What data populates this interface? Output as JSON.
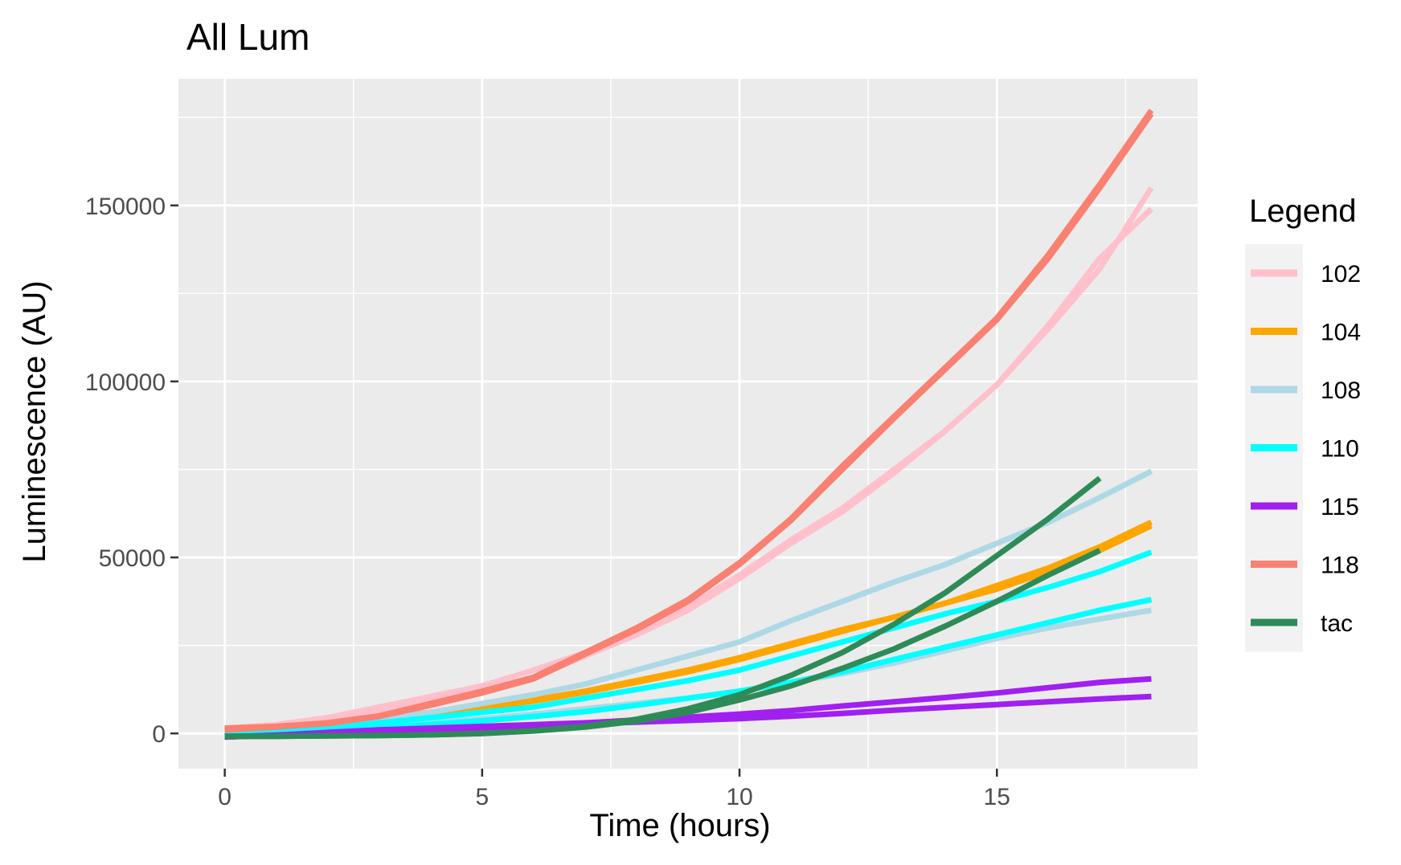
{
  "chart_data": {
    "type": "line",
    "title": "All Lum",
    "xlabel": "Time (hours)",
    "ylabel": "Luminescence (AU)",
    "xlim": [
      -0.9,
      18.9
    ],
    "ylim": [
      -10000,
      186000
    ],
    "x_ticks": [
      0,
      5,
      10,
      15
    ],
    "y_ticks": [
      0,
      50000,
      100000,
      150000
    ],
    "x_tick_labels": [
      "0",
      "5",
      "10",
      "15"
    ],
    "y_tick_labels": [
      "0",
      "50000",
      "100000",
      "150000"
    ],
    "grid": true,
    "legend_title": "Legend",
    "legend_position": "right",
    "legend": [
      {
        "name": "102",
        "color": "#FFC0CB"
      },
      {
        "name": "104",
        "color": "#FFA500"
      },
      {
        "name": "108",
        "color": "#ADD8E6"
      },
      {
        "name": "110",
        "color": "#00FFFF"
      },
      {
        "name": "115",
        "color": "#A020F0"
      },
      {
        "name": "118",
        "color": "#FA8072"
      },
      {
        "name": "tac",
        "color": "#2E8B57"
      }
    ],
    "series": [
      {
        "name": "102",
        "color": "#FFC0CB",
        "x": [
          0,
          1,
          2,
          3,
          4,
          5,
          6,
          7,
          8,
          9,
          10,
          11,
          12,
          13,
          14,
          15,
          16,
          17,
          18
        ],
        "y": [
          1500,
          2500,
          4500,
          7500,
          10500,
          13500,
          18000,
          23000,
          29000,
          36000,
          45000,
          55000,
          64000,
          75000,
          86000,
          99000,
          115000,
          132000,
          155000
        ]
      },
      {
        "name": "102",
        "color": "#FFC0CB",
        "x": [
          0,
          1,
          2,
          3,
          4,
          5,
          6,
          7,
          8,
          9,
          10,
          11,
          12,
          13,
          14,
          15,
          16,
          17,
          18
        ],
        "y": [
          1000,
          2000,
          3500,
          6000,
          9000,
          12000,
          16000,
          22000,
          28000,
          35000,
          44000,
          54000,
          63000,
          74000,
          86000,
          99000,
          116000,
          135000,
          149000
        ]
      },
      {
        "name": "104",
        "color": "#FFA500",
        "x": [
          0,
          1,
          2,
          3,
          4,
          5,
          6,
          7,
          8,
          9,
          10,
          11,
          12,
          13,
          14,
          15,
          16,
          17,
          18
        ],
        "y": [
          1000,
          1800,
          3000,
          4500,
          6000,
          7500,
          9500,
          12000,
          15000,
          18000,
          21500,
          25500,
          29500,
          33000,
          37000,
          41000,
          46000,
          52000,
          59000
        ]
      },
      {
        "name": "104",
        "color": "#FFA500",
        "x": [
          0,
          1,
          2,
          3,
          4,
          5,
          6,
          7,
          8,
          9,
          10,
          11,
          12,
          13,
          14,
          15,
          16,
          17,
          18
        ],
        "y": [
          800,
          1500,
          2700,
          4200,
          5700,
          7200,
          9200,
          11700,
          14500,
          17500,
          21000,
          25000,
          29000,
          33000,
          37000,
          42000,
          47000,
          53000,
          60000
        ]
      },
      {
        "name": "108",
        "color": "#ADD8E6",
        "x": [
          0,
          1,
          2,
          3,
          4,
          5,
          6,
          7,
          8,
          9,
          10,
          11,
          12,
          13,
          14,
          15,
          16,
          17,
          18
        ],
        "y": [
          -500,
          500,
          2000,
          4000,
          6000,
          8500,
          11000,
          14000,
          18000,
          22000,
          26000,
          32000,
          37500,
          43000,
          48000,
          54000,
          60000,
          67000,
          74500
        ]
      },
      {
        "name": "108",
        "color": "#ADD8E6",
        "x": [
          0,
          1,
          2,
          3,
          4,
          5,
          6,
          7,
          8,
          9,
          10,
          11,
          12,
          13,
          14,
          15,
          16,
          17,
          18
        ],
        "y": [
          -800,
          0,
          800,
          1800,
          3000,
          4200,
          5500,
          7000,
          8500,
          10000,
          12000,
          14500,
          17000,
          20000,
          23500,
          27000,
          30000,
          32500,
          35000
        ]
      },
      {
        "name": "110",
        "color": "#00FFFF",
        "x": [
          0,
          1,
          2,
          3,
          4,
          5,
          6,
          7,
          8,
          9,
          10,
          11,
          12,
          13,
          14,
          15,
          16,
          17,
          18
        ],
        "y": [
          -500,
          500,
          1500,
          3000,
          4500,
          6000,
          7500,
          10000,
          12500,
          15000,
          18000,
          22000,
          26000,
          30000,
          34000,
          37500,
          41500,
          46000,
          51500
        ]
      },
      {
        "name": "110",
        "color": "#00FFFF",
        "x": [
          0,
          1,
          2,
          3,
          4,
          5,
          6,
          7,
          8,
          9,
          10,
          11,
          12,
          13,
          14,
          15,
          16,
          17,
          18
        ],
        "y": [
          -800,
          0,
          800,
          1600,
          2600,
          3600,
          4800,
          6200,
          8000,
          10000,
          12000,
          14500,
          17500,
          21000,
          24500,
          28000,
          31500,
          35000,
          38000
        ]
      },
      {
        "name": "115",
        "color": "#A020F0",
        "x": [
          0,
          1,
          2,
          3,
          4,
          5,
          6,
          7,
          8,
          9,
          10,
          11,
          12,
          13,
          14,
          15,
          16,
          17,
          18
        ],
        "y": [
          -1000,
          -500,
          300,
          1000,
          1500,
          2000,
          2500,
          3000,
          3800,
          4600,
          5500,
          6500,
          7800,
          9000,
          10200,
          11500,
          13000,
          14500,
          15500
        ]
      },
      {
        "name": "115",
        "color": "#A020F0",
        "x": [
          0,
          1,
          2,
          3,
          4,
          5,
          6,
          7,
          8,
          9,
          10,
          11,
          12,
          13,
          14,
          15,
          16,
          17,
          18
        ],
        "y": [
          -1000,
          -500,
          0,
          500,
          1000,
          1600,
          2200,
          2700,
          3200,
          3700,
          4200,
          4900,
          5700,
          6600,
          7400,
          8200,
          9000,
          9800,
          10500
        ]
      },
      {
        "name": "118",
        "color": "#FA8072",
        "x": [
          0,
          1,
          2,
          3,
          4,
          5,
          6,
          7,
          8,
          9,
          10,
          11,
          12,
          13,
          14,
          15,
          16,
          17,
          18
        ],
        "y": [
          1500,
          2000,
          3000,
          5000,
          8500,
          12000,
          16000,
          23000,
          30000,
          38000,
          48500,
          61000,
          76000,
          90000,
          104000,
          118000,
          136000,
          156000,
          177000
        ]
      },
      {
        "name": "118",
        "color": "#FA8072",
        "x": [
          0,
          1,
          2,
          3,
          4,
          5,
          6,
          7,
          8,
          9,
          10,
          11,
          12,
          13,
          14,
          15,
          16,
          17,
          18
        ],
        "y": [
          1000,
          1800,
          2800,
          4800,
          8000,
          11500,
          15500,
          22500,
          29500,
          37500,
          48000,
          60500,
          75000,
          89500,
          103500,
          117500,
          135000,
          155000,
          176000
        ]
      },
      {
        "name": "tac",
        "color": "#2E8B57",
        "x": [
          0,
          1,
          2,
          3,
          4,
          5,
          6,
          7,
          8,
          9,
          10,
          11,
          12,
          13,
          14,
          15,
          16,
          17
        ],
        "y": [
          -800,
          -800,
          -700,
          -600,
          -400,
          0,
          800,
          2000,
          4000,
          7000,
          11000,
          16500,
          23000,
          31000,
          40000,
          50500,
          61000,
          72500
        ]
      },
      {
        "name": "tac",
        "color": "#2E8B57",
        "x": [
          0,
          1,
          2,
          3,
          4,
          5,
          6,
          7,
          8,
          9,
          10,
          11,
          12,
          13,
          14,
          15,
          16,
          17
        ],
        "y": [
          -800,
          -800,
          -700,
          -600,
          -400,
          0,
          700,
          1800,
          3500,
          6000,
          9500,
          13500,
          18500,
          24000,
          30500,
          37500,
          45000,
          52000
        ]
      }
    ]
  }
}
